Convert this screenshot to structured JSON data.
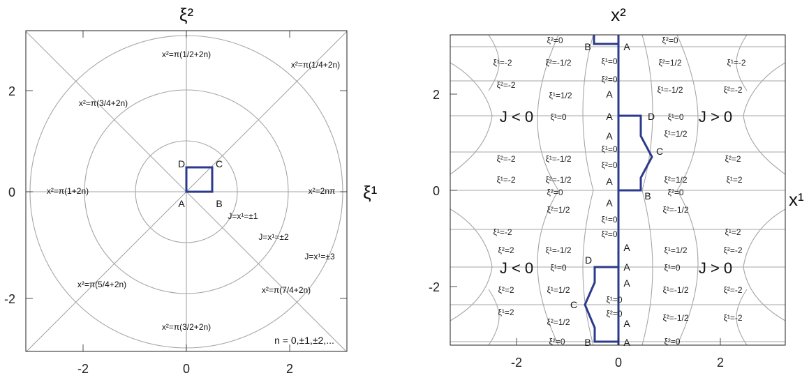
{
  "left_panel": {
    "x_axis_label": "ξ¹",
    "y_axis_label": "ξ²",
    "x_ticks": [
      "-2",
      "0",
      "2"
    ],
    "y_ticks": [
      "2",
      "0",
      "-2"
    ],
    "annotations": {
      "a": "x²=π(1/2+2n)",
      "b": "x²=π(1/4+2n)",
      "c": "x²=π(3/4+2n)",
      "d": "x²=π(1+2n)",
      "e": "x²=2nπ",
      "f": "x²=π(5/4+2n)",
      "g": "x²=π(7/4+2n)",
      "h": "x²=π(3/2+2n)",
      "j1": "J=x¹=±1",
      "j2": "J=x¹=±2",
      "j3": "J=x¹=±3",
      "n": "n = 0,±1,±2,..."
    },
    "corners": {
      "A": "A",
      "B": "B",
      "C": "C",
      "D": "D"
    }
  },
  "right_panel": {
    "x_axis_label": "x¹",
    "y_axis_label": "x²",
    "x_ticks": [
      "-2",
      "0",
      "2"
    ],
    "y_ticks": [
      "2",
      "0",
      "-2"
    ],
    "regions": {
      "left_top": "J < 0",
      "right_top": "J > 0",
      "left_bottom": "J < 0",
      "right_bottom": "J > 0"
    },
    "labels": {
      "A": "A",
      "B": "B",
      "C": "C",
      "D": "D",
      "xi2_0": "ξ²=0",
      "xi1_0": "ξ¹=0",
      "xi1_m2": "ξ¹=-2",
      "xi1_p2": "ξ¹=2",
      "xi2_m2": "ξ²=-2",
      "xi2_p2": "ξ²=2",
      "xi2_mh": "ξ²=-1/2",
      "xi2_ph": "ξ²=1/2",
      "xi1_mh": "ξ¹=-1/2",
      "xi1_ph": "ξ¹=1/2"
    }
  }
}
